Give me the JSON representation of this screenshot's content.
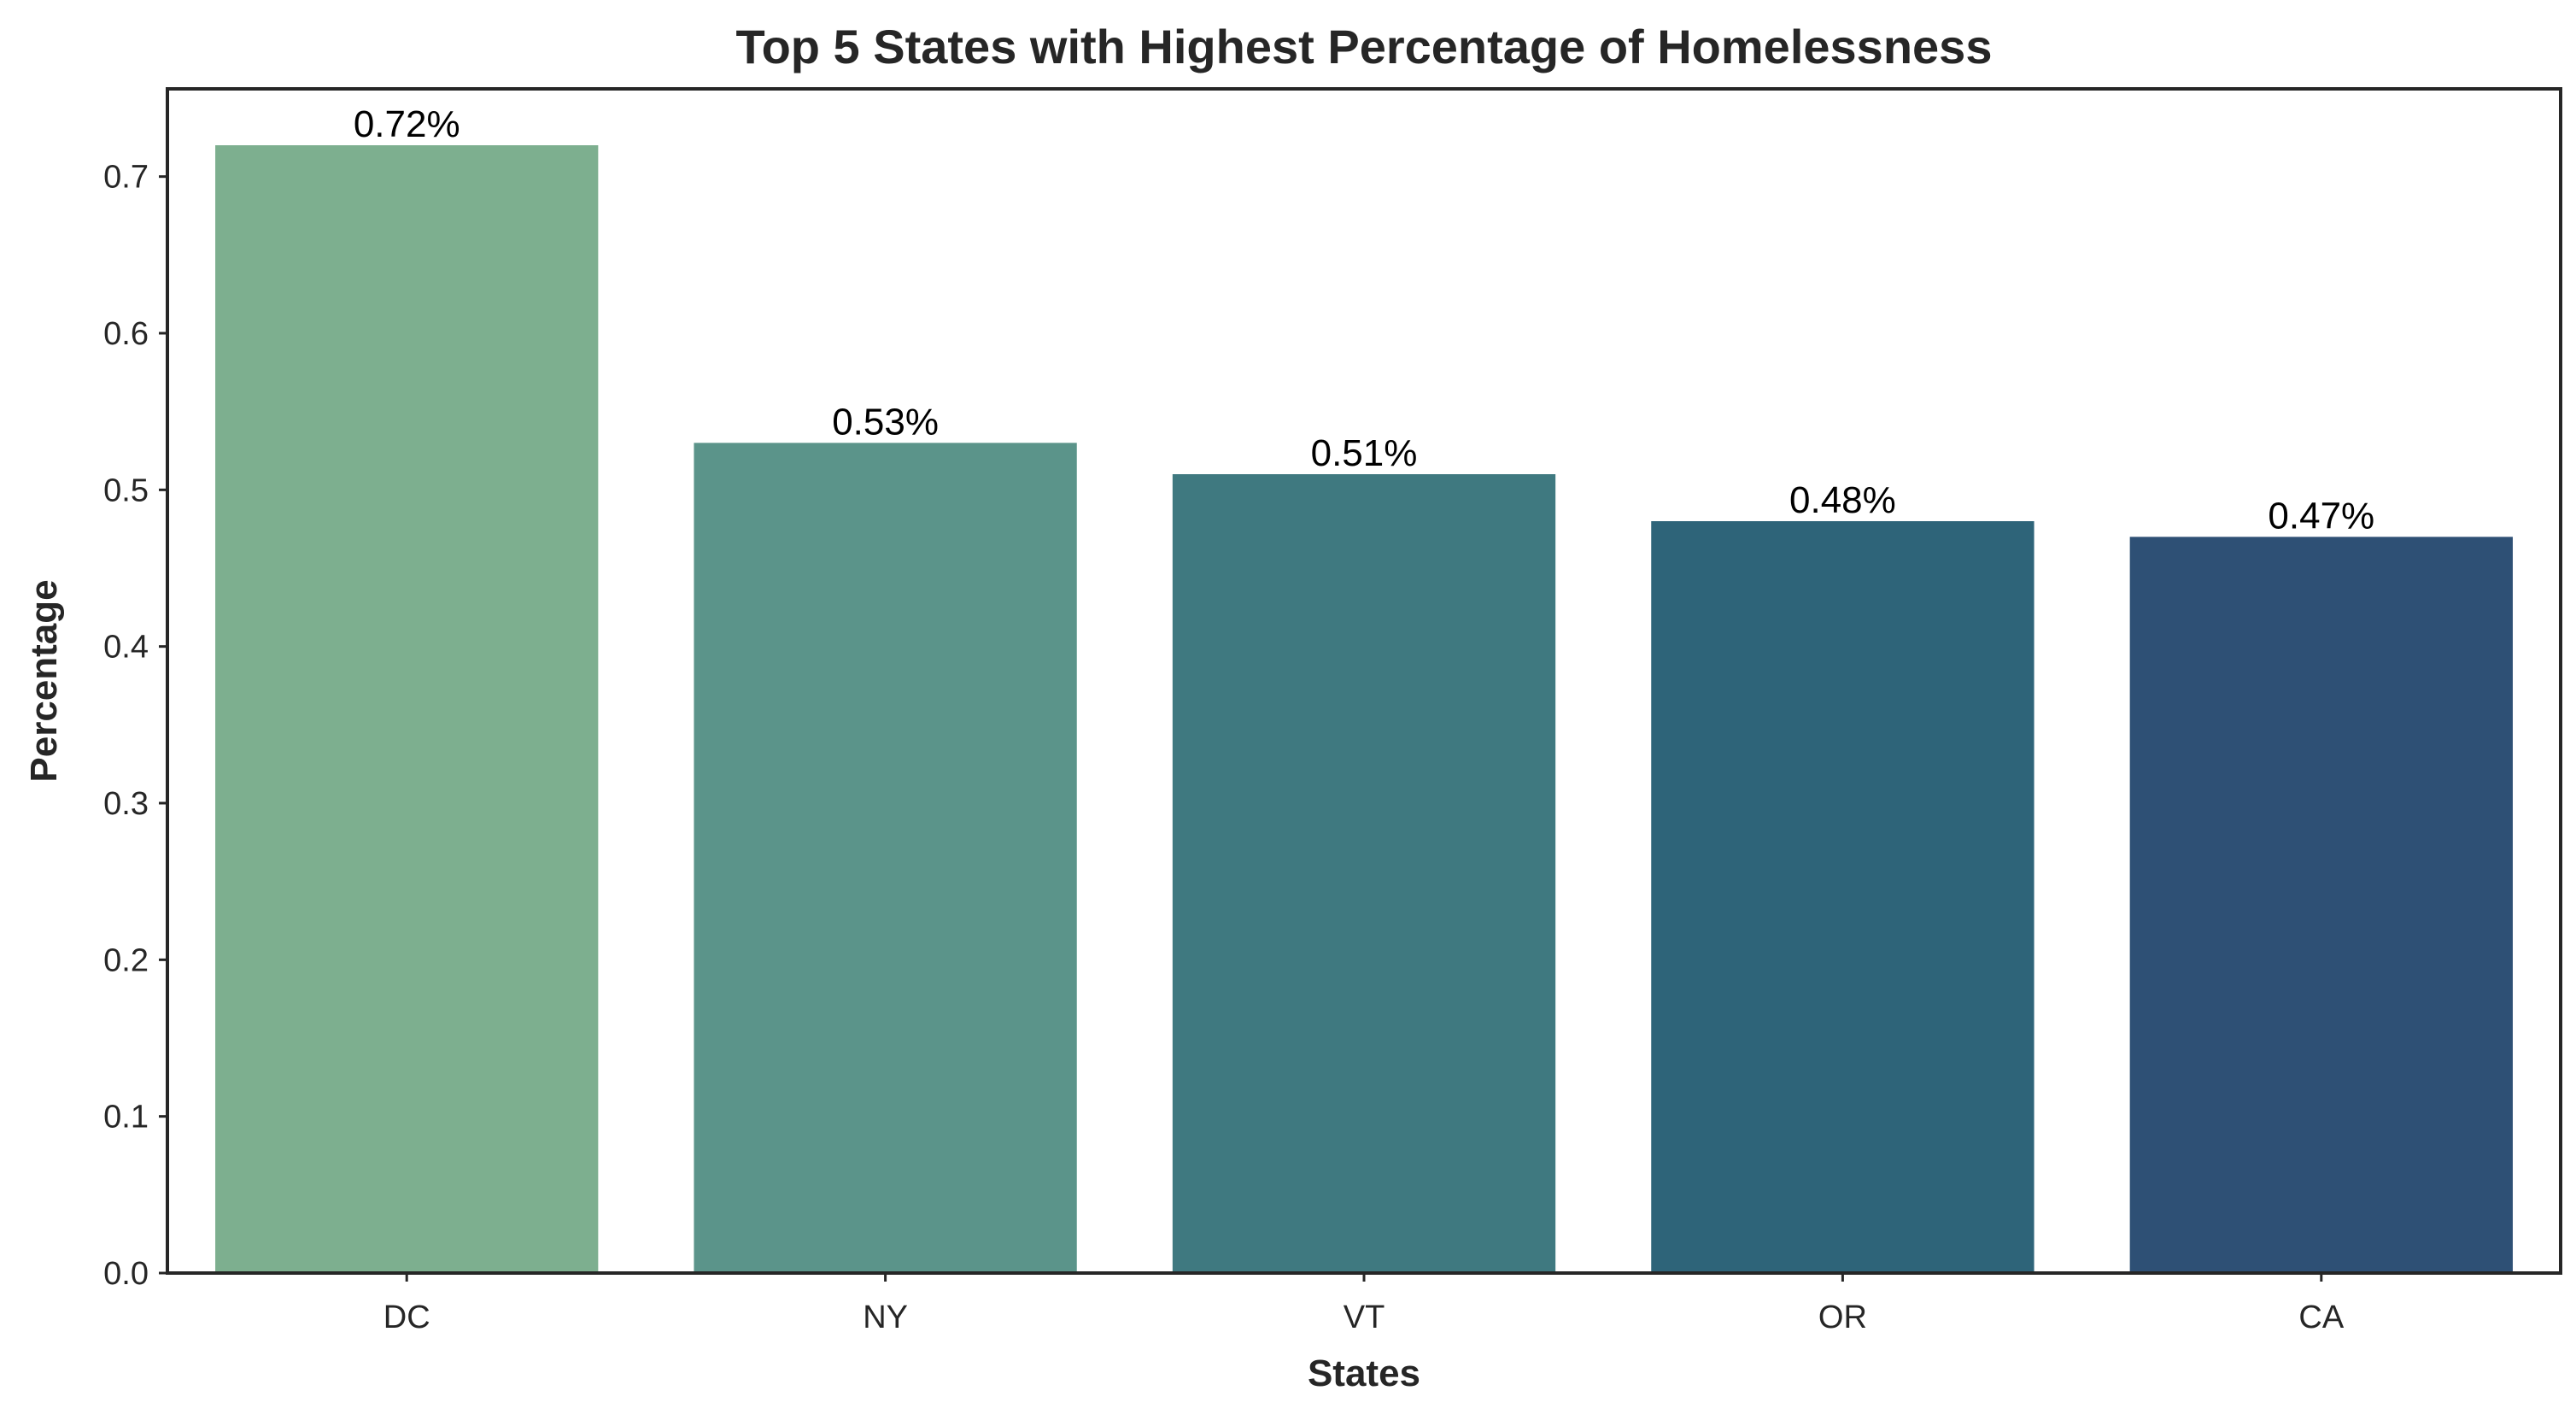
{
  "chart_data": {
    "type": "bar",
    "title": "Top 5 States with Highest Percentage of Homelessness",
    "xlabel": "States",
    "ylabel": "Percentage",
    "categories": [
      "DC",
      "NY",
      "VT",
      "OR",
      "CA"
    ],
    "values": [
      0.72,
      0.53,
      0.51,
      0.48,
      0.47
    ],
    "data_labels": [
      "0.72%",
      "0.53%",
      "0.51%",
      "0.48%",
      "0.47%"
    ],
    "bar_colors": [
      "#7daf8f",
      "#5b948a",
      "#3f7980",
      "#2e6479",
      "#2e5075"
    ],
    "ylim": [
      0,
      0.756
    ],
    "yticks": [
      0.0,
      0.1,
      0.2,
      0.3,
      0.4,
      0.5,
      0.6,
      0.7
    ],
    "ytick_labels": [
      "0.0",
      "0.1",
      "0.2",
      "0.3",
      "0.4",
      "0.5",
      "0.6",
      "0.7"
    ],
    "grid": false,
    "legend": "none"
  }
}
